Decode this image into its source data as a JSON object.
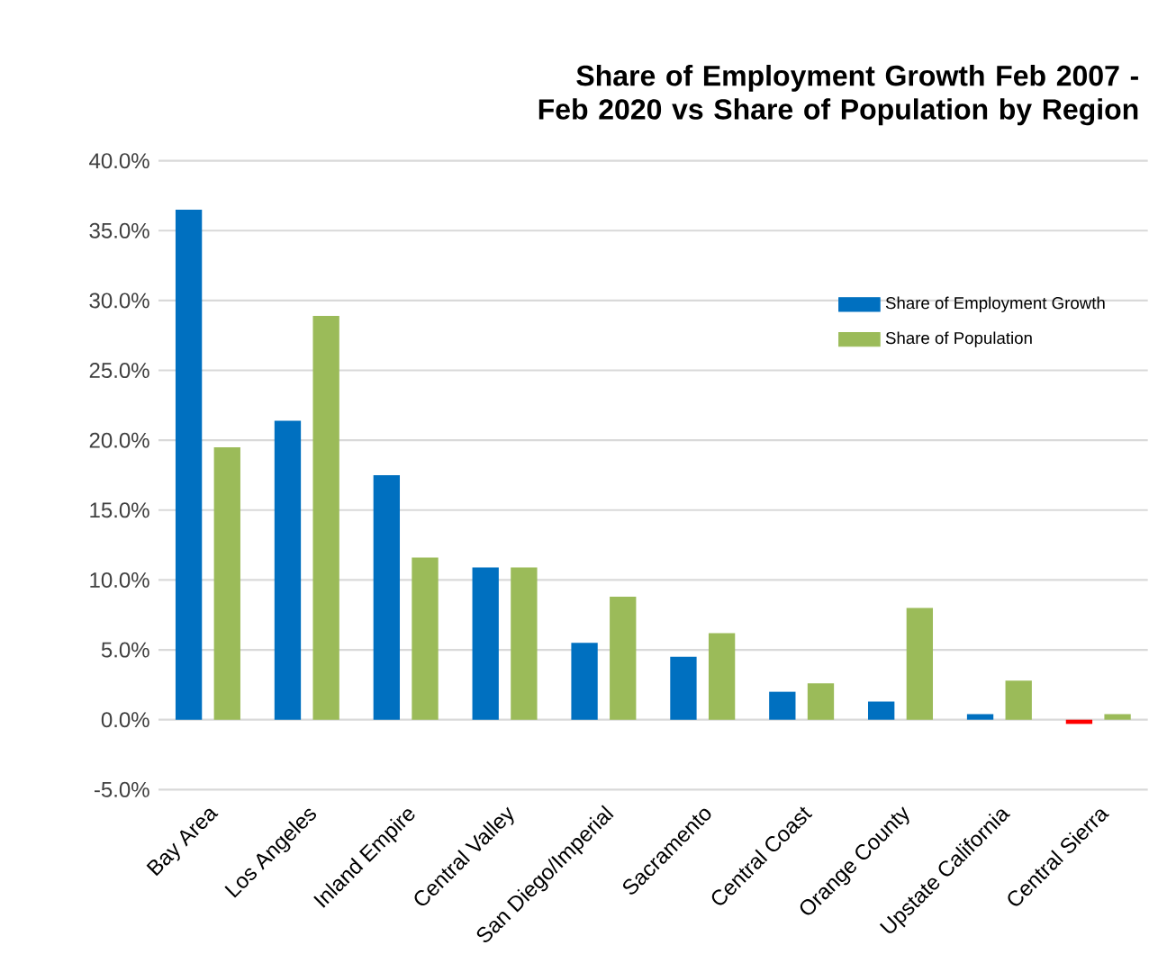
{
  "chart_data": {
    "type": "bar",
    "title": "Share of Employment Growth Feb 2007 - Feb 2020 vs Share of Population by Region",
    "categories": [
      "Bay Area",
      "Los Angeles",
      "Inland Empire",
      "Central Valley",
      "San Diego/Imperial",
      "Sacramento",
      "Central Coast",
      "Orange County",
      "Upstate California",
      "Central Sierra"
    ],
    "series": [
      {
        "name": "Share of Employment Growth",
        "color": "#0070c0",
        "colors": [
          "#0070c0",
          "#0070c0",
          "#0070c0",
          "#0070c0",
          "#0070c0",
          "#0070c0",
          "#0070c0",
          "#0070c0",
          "#0070c0",
          "#ff0000"
        ],
        "values": [
          36.5,
          21.4,
          17.5,
          10.9,
          5.5,
          4.5,
          2.0,
          1.3,
          0.4,
          -0.3
        ]
      },
      {
        "name": "Share of Population",
        "color": "#9bbb59",
        "values": [
          19.5,
          28.9,
          11.6,
          10.9,
          8.8,
          6.2,
          2.6,
          8.0,
          2.8,
          0.4
        ]
      }
    ],
    "ylim": [
      -5,
      40
    ],
    "yticks": [
      {
        "value": -5,
        "label": "-5.0%"
      },
      {
        "value": 0,
        "label": "0.0%"
      },
      {
        "value": 5,
        "label": "5.0%"
      },
      {
        "value": 10,
        "label": "10.0%"
      },
      {
        "value": 15,
        "label": "15.0%"
      },
      {
        "value": 20,
        "label": "20.0%"
      },
      {
        "value": 25,
        "label": "25.0%"
      },
      {
        "value": 30,
        "label": "30.0%"
      },
      {
        "value": 35,
        "label": "35.0%"
      },
      {
        "value": 40,
        "label": "40.0%"
      }
    ],
    "grid": "y",
    "legend": "top right"
  }
}
